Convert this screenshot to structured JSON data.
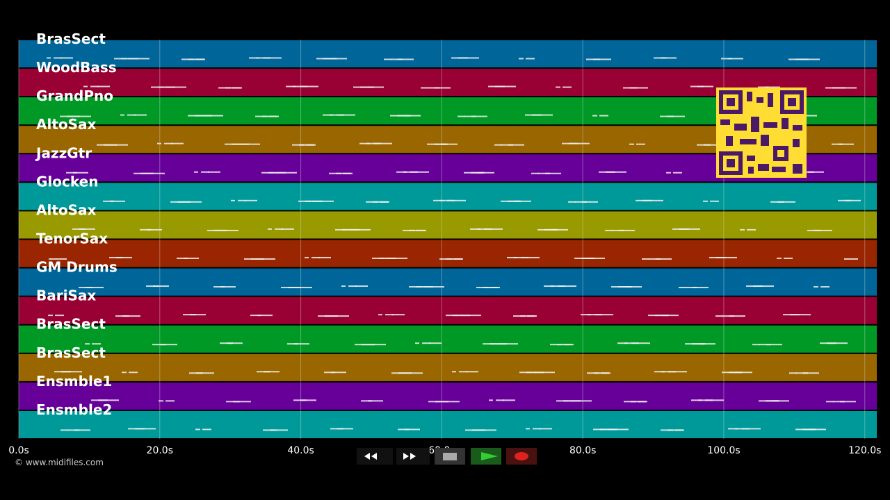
{
  "tracks": [
    {
      "name": "BrasSect",
      "color": "#006699"
    },
    {
      "name": "WoodBass",
      "color": "#990033"
    },
    {
      "name": "GrandPno",
      "color": "#009926"
    },
    {
      "name": "AltoSax",
      "color": "#996600"
    },
    {
      "name": "JazzGtr",
      "color": "#660099"
    },
    {
      "name": "Glocken",
      "color": "#009999"
    },
    {
      "name": "AltoSax",
      "color": "#999900"
    },
    {
      "name": "TenorSax",
      "color": "#992600"
    },
    {
      "name": "GM Drums",
      "color": "#006699"
    },
    {
      "name": "BariSax",
      "color": "#990033"
    },
    {
      "name": "BrasSect",
      "color": "#009926"
    },
    {
      "name": "BrasSect",
      "color": "#996600"
    },
    {
      "name": "Ensmble1",
      "color": "#660099"
    },
    {
      "name": "Ensmble2",
      "color": "#009999"
    }
  ],
  "time_axis": {
    "xlim": [
      0,
      121.7
    ],
    "ticks": [
      {
        "value": 0,
        "label": "0.0s"
      },
      {
        "value": 20,
        "label": "20.0s"
      },
      {
        "value": 40,
        "label": "40.0s"
      },
      {
        "value": 60,
        "label": "60.0s"
      },
      {
        "value": 80,
        "label": "80.0s"
      },
      {
        "value": 100,
        "label": "100.0s"
      },
      {
        "value": 120,
        "label": "120.0s"
      }
    ]
  },
  "copyright": "© www.midifiles.com"
}
